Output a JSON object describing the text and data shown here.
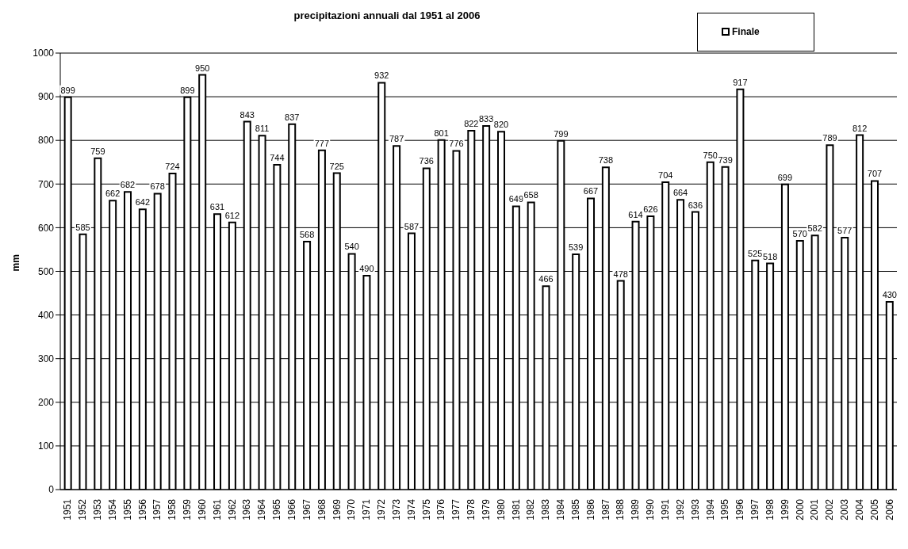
{
  "chart_data": {
    "type": "bar",
    "title": "precipitazioni annuali dal 1951 al 2006",
    "ylabel": "mm",
    "categories": [
      "1951",
      "1952",
      "1953",
      "1954",
      "1955",
      "1956",
      "1957",
      "1958",
      "1959",
      "1960",
      "1961",
      "1962",
      "1963",
      "1964",
      "1965",
      "1966",
      "1967",
      "1968",
      "1969",
      "1970",
      "1971",
      "1972",
      "1973",
      "1974",
      "1975",
      "1976",
      "1977",
      "1978",
      "1979",
      "1980",
      "1981",
      "1982",
      "1983",
      "1984",
      "1985",
      "1986",
      "1987",
      "1988",
      "1989",
      "1990",
      "1991",
      "1992",
      "1993",
      "1994",
      "1995",
      "1996",
      "1997",
      "1998",
      "1999",
      "2000",
      "2001",
      "2002",
      "2003",
      "2004",
      "2005",
      "2006"
    ],
    "series": [
      {
        "name": "Finale",
        "color": "#ffffff",
        "values": [
          899,
          585,
          759,
          662,
          682,
          642,
          678,
          724,
          899,
          950,
          631,
          612,
          843,
          811,
          744,
          837,
          568,
          777,
          725,
          540,
          490,
          932,
          787,
          587,
          736,
          801,
          776,
          822,
          833,
          820,
          649,
          658,
          466,
          799,
          539,
          667,
          738,
          478,
          614,
          626,
          704,
          664,
          636,
          750,
          739,
          917,
          525,
          518,
          699,
          570,
          582,
          789,
          577,
          812,
          707,
          430
        ]
      }
    ],
    "ylim": [
      0,
      1000
    ],
    "yticks": [
      0,
      100,
      200,
      300,
      400,
      500,
      600,
      700,
      800,
      900,
      1000
    ],
    "grid": "y",
    "legend": "top right",
    "data_labels": true
  }
}
